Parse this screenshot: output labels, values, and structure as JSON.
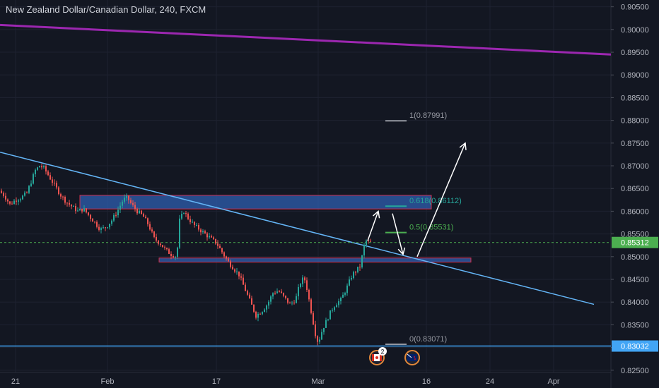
{
  "title": "New Zealand Dollar/Canadian Dollar, 240, FXCM",
  "colors": {
    "background": "#131722",
    "up": "#26a69a",
    "down": "#ef5350",
    "trend_main": "#64b5f6",
    "trend_purple": "#9c27b0",
    "zone_fill": "#2f5fb0",
    "zone_border": "#d32f4f",
    "current_price": "#4caf50",
    "support_line": "#42a5f5",
    "fib_gray": "#9598a1",
    "fib_teal": "#26a69a",
    "fib_green": "#4caf50"
  },
  "chart_data": {
    "type": "candlestick",
    "symbol": "NZDCAD",
    "timeframe": "240",
    "ylim": [
      0.8245,
      0.9065
    ],
    "y_ticks": [
      "0.90500",
      "0.90000",
      "0.89500",
      "0.89000",
      "0.88500",
      "0.88000",
      "0.87500",
      "0.87000",
      "0.86500",
      "0.86000",
      "0.85500",
      "0.85000",
      "0.84500",
      "0.84000",
      "0.83500",
      "0.83000",
      "0.82500"
    ],
    "x_ticks": [
      "21",
      "Feb",
      "17",
      "Mar",
      "16",
      "24",
      "Apr"
    ],
    "price_path": [
      [
        0,
        0.8645
      ],
      [
        8,
        0.8635
      ],
      [
        16,
        0.8615
      ],
      [
        24,
        0.8625
      ],
      [
        32,
        0.863
      ],
      [
        40,
        0.864
      ],
      [
        46,
        0.8665
      ],
      [
        52,
        0.869
      ],
      [
        58,
        0.87
      ],
      [
        64,
        0.8695
      ],
      [
        70,
        0.868
      ],
      [
        76,
        0.8665
      ],
      [
        82,
        0.865
      ],
      [
        88,
        0.8635
      ],
      [
        96,
        0.862
      ],
      [
        104,
        0.861
      ],
      [
        112,
        0.86
      ],
      [
        120,
        0.8605
      ],
      [
        128,
        0.859
      ],
      [
        136,
        0.8575
      ],
      [
        144,
        0.856
      ],
      [
        152,
        0.8565
      ],
      [
        160,
        0.858
      ],
      [
        168,
        0.86
      ],
      [
        176,
        0.8625
      ],
      [
        182,
        0.863
      ],
      [
        188,
        0.8615
      ],
      [
        196,
        0.86
      ],
      [
        204,
        0.859
      ],
      [
        212,
        0.857
      ],
      [
        220,
        0.854
      ],
      [
        228,
        0.853
      ],
      [
        236,
        0.8515
      ],
      [
        244,
        0.8505
      ],
      [
        252,
        0.85
      ],
      [
        256,
        0.858
      ],
      [
        262,
        0.86
      ],
      [
        268,
        0.8585
      ],
      [
        276,
        0.857
      ],
      [
        284,
        0.856
      ],
      [
        292,
        0.855
      ],
      [
        300,
        0.854
      ],
      [
        308,
        0.853
      ],
      [
        316,
        0.851
      ],
      [
        324,
        0.849
      ],
      [
        332,
        0.8475
      ],
      [
        340,
        0.846
      ],
      [
        348,
        0.843
      ],
      [
        356,
        0.84
      ],
      [
        364,
        0.837
      ],
      [
        372,
        0.838
      ],
      [
        380,
        0.8395
      ],
      [
        388,
        0.842
      ],
      [
        396,
        0.8425
      ],
      [
        404,
        0.841
      ],
      [
        412,
        0.8395
      ],
      [
        420,
        0.8405
      ],
      [
        426,
        0.844
      ],
      [
        432,
        0.8455
      ],
      [
        436,
        0.843
      ],
      [
        442,
        0.838
      ],
      [
        448,
        0.833
      ],
      [
        452,
        0.831
      ],
      [
        458,
        0.834
      ],
      [
        464,
        0.836
      ],
      [
        470,
        0.838
      ],
      [
        476,
        0.8395
      ],
      [
        484,
        0.8405
      ],
      [
        492,
        0.843
      ],
      [
        500,
        0.846
      ],
      [
        506,
        0.847
      ],
      [
        512,
        0.848
      ],
      [
        516,
        0.852
      ],
      [
        520,
        0.8535
      ],
      [
        524,
        0.8531
      ]
    ],
    "trendlines": [
      {
        "name": "upper-resistance",
        "from": {
          "x": "start",
          "price": 0.901
        },
        "to": {
          "x": "end",
          "price": 0.8945
        },
        "color": "#9c27b0",
        "width": 3
      },
      {
        "name": "descending-trendline",
        "from": {
          "x": "start",
          "price": 0.873
        },
        "to": {
          "x": "end",
          "price": 0.8395
        },
        "color": "#64b5f6",
        "width": 1.5
      }
    ],
    "zones": [
      {
        "name": "resistance-zone",
        "price_top": 0.8635,
        "price_bottom": 0.8605
      },
      {
        "name": "support-zone",
        "price_top": 0.8497,
        "price_bottom": 0.8488
      }
    ],
    "fibonacci": [
      {
        "level": "1",
        "price": 0.87991,
        "label": "1(0.87991)",
        "color": "#9598a1"
      },
      {
        "level": "0.618",
        "price": 0.86112,
        "label": "0.618(0.86112)",
        "color": "#26a69a"
      },
      {
        "level": "0.5",
        "price": 0.85531,
        "label": "0.5(0.85531)",
        "color": "#4caf50"
      },
      {
        "level": "0",
        "price": 0.83071,
        "label": "0(0.83071)",
        "color": "#9598a1"
      }
    ],
    "current_price": {
      "value": 0.85312,
      "label": "0.85312"
    },
    "support_price": {
      "value": 0.83032,
      "label": "0.83032"
    },
    "projection_arrows": [
      {
        "from": {
          "x": 520,
          "price": 0.8535
        },
        "to": {
          "x": 535,
          "price": 0.86
        }
      },
      {
        "from": {
          "x": 555,
          "price": 0.8595
        },
        "to": {
          "x": 570,
          "price": 0.8505
        }
      },
      {
        "from": {
          "x": 590,
          "price": 0.85
        },
        "to": {
          "x": 658,
          "price": 0.875
        }
      }
    ],
    "event_badges": [
      {
        "name": "canada-flag-event-icon",
        "badge": "2"
      },
      {
        "name": "new-zealand-flag-event-icon",
        "badge": ""
      }
    ]
  }
}
